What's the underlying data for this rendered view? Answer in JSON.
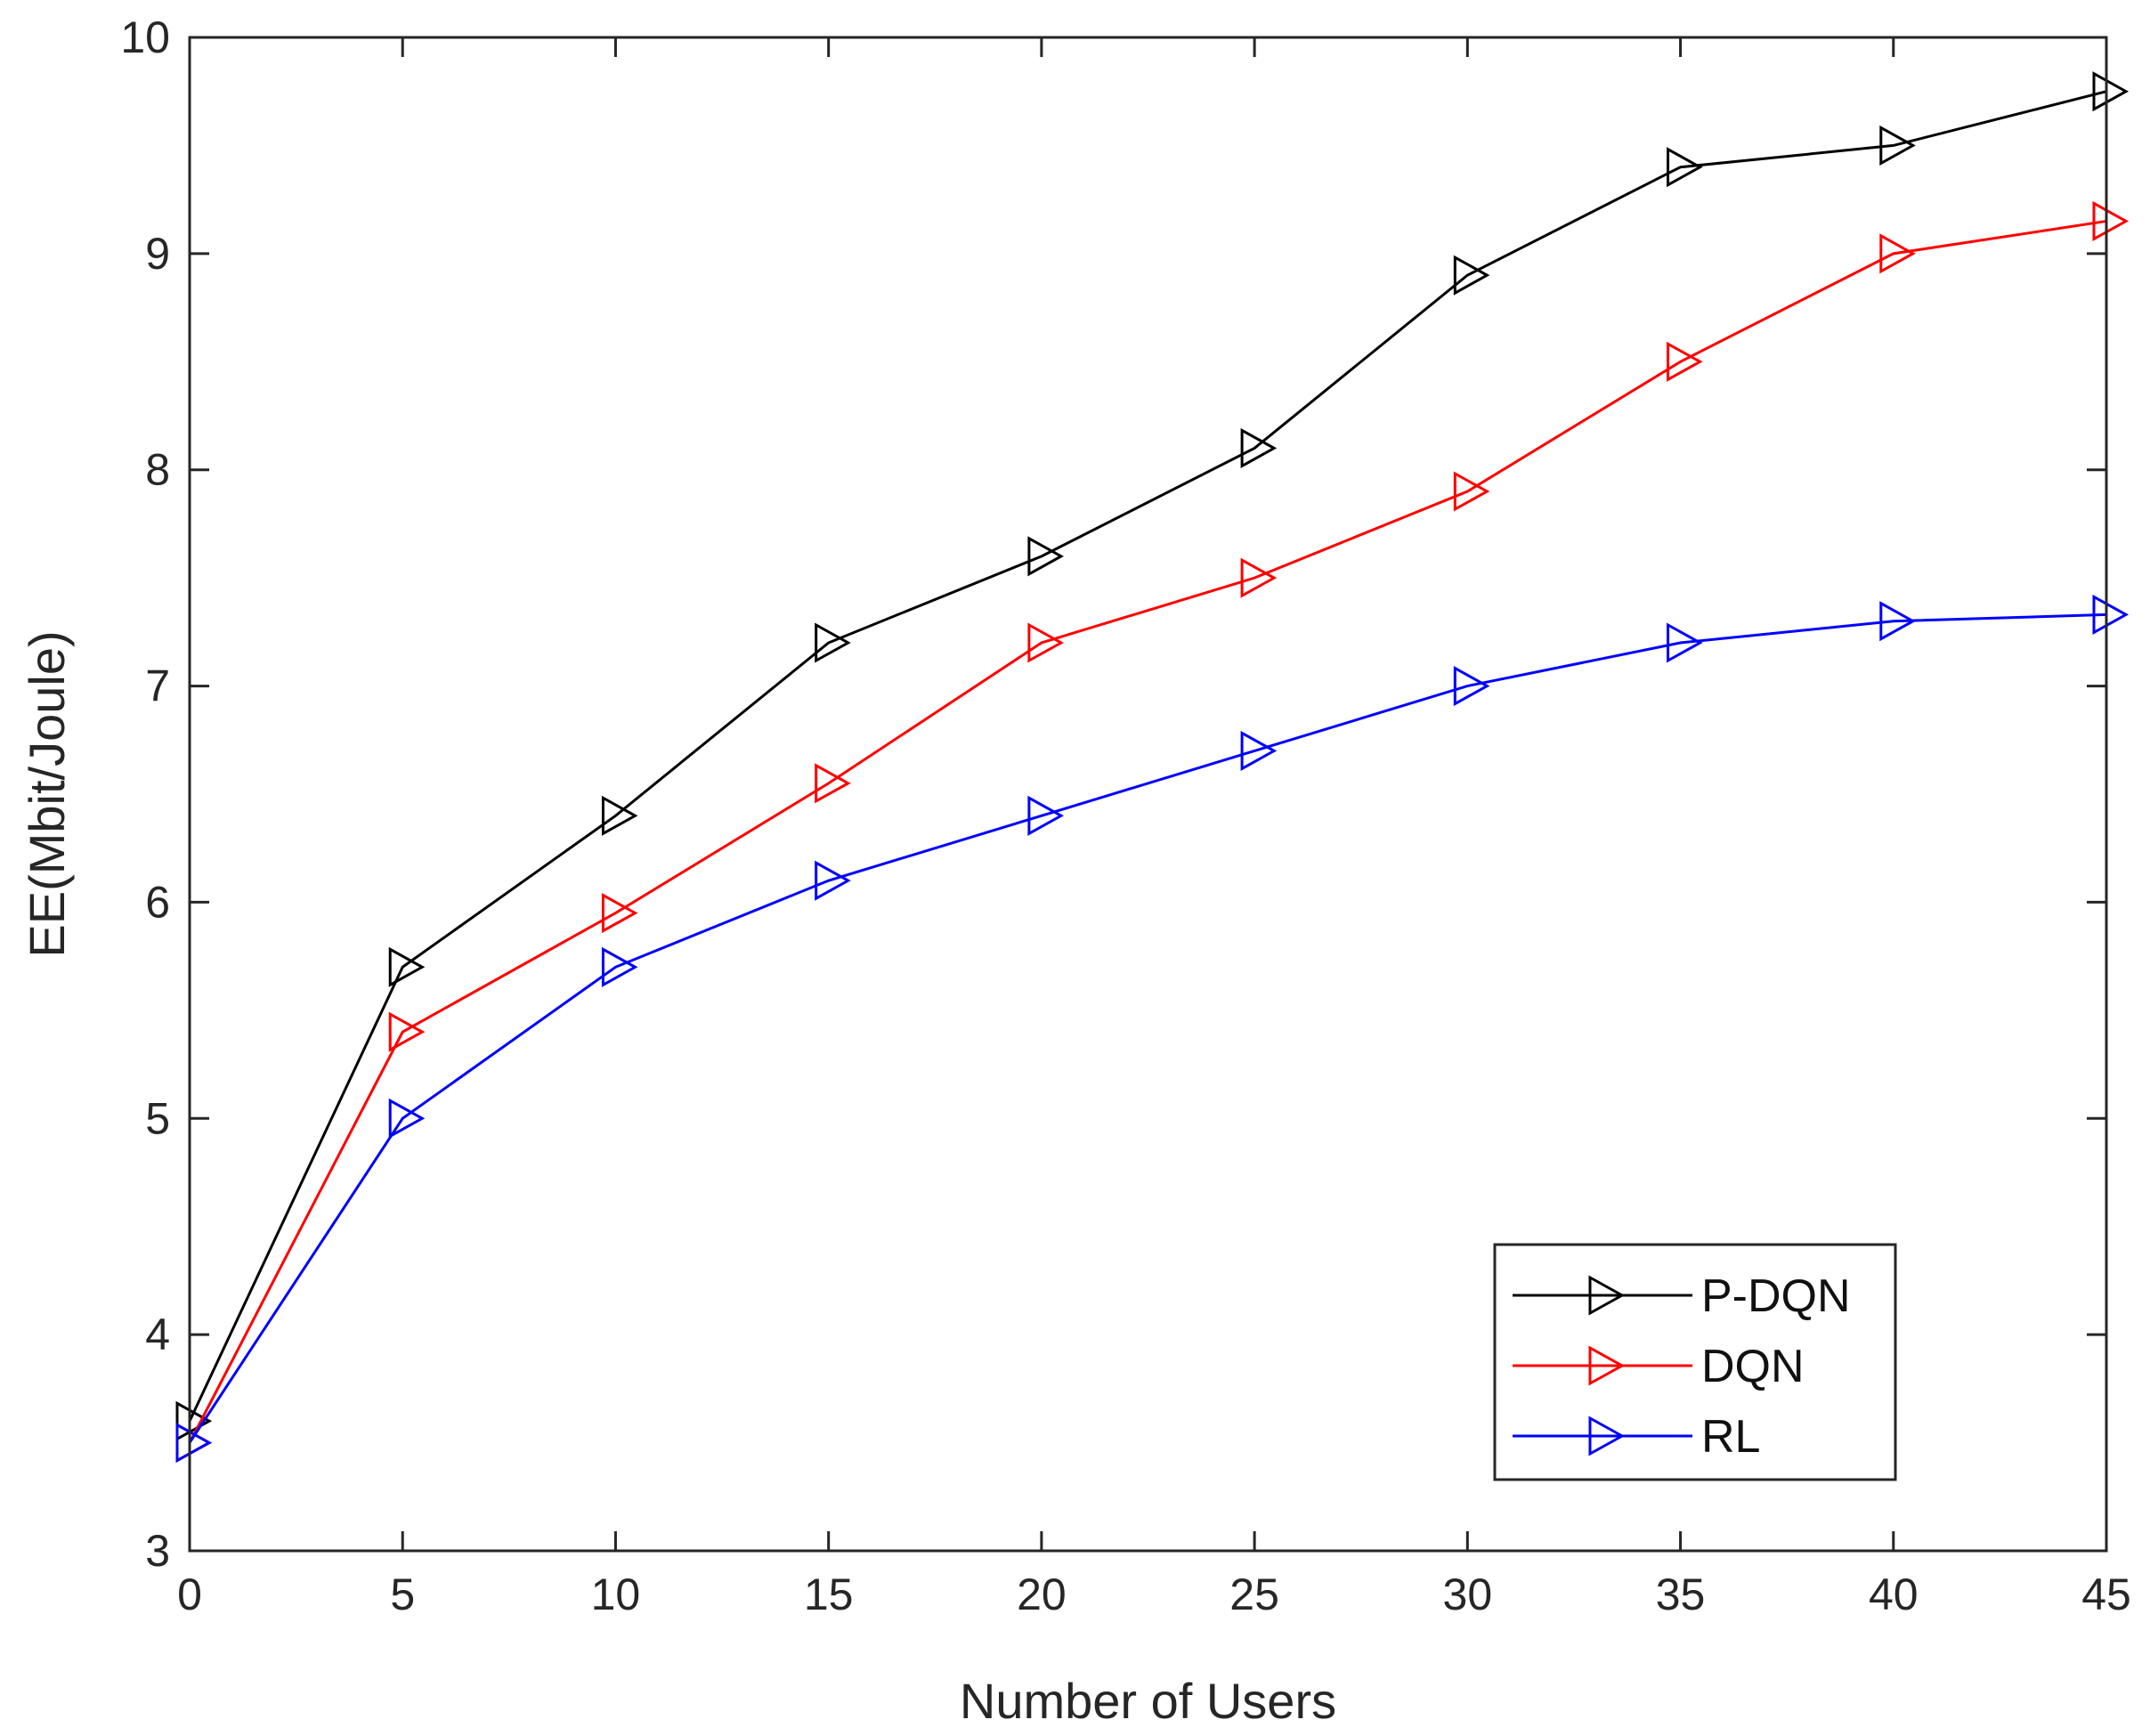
{
  "chart_data": {
    "type": "line",
    "title": "",
    "xlabel": "Number of Users",
    "ylabel": "EE(Mbit/Joule)",
    "x": [
      0,
      5,
      10,
      15,
      20,
      25,
      30,
      35,
      40,
      45
    ],
    "xlim": [
      0,
      45
    ],
    "ylim": [
      3,
      10
    ],
    "xticks": [
      0,
      5,
      10,
      15,
      20,
      25,
      30,
      35,
      40,
      45
    ],
    "yticks": [
      3,
      4,
      5,
      6,
      7,
      8,
      9,
      10
    ],
    "grid": false,
    "legend_position": "bottom-right",
    "marker": "triangle-right",
    "series": [
      {
        "name": "P-DQN",
        "color": "#000000",
        "values": [
          3.6,
          5.7,
          6.4,
          7.2,
          7.6,
          8.1,
          8.9,
          9.4,
          9.5,
          9.75
        ]
      },
      {
        "name": "DQN",
        "color": "#ff0000",
        "values": [
          3.5,
          5.4,
          5.95,
          6.55,
          7.2,
          7.5,
          7.9,
          8.5,
          9.0,
          9.15
        ]
      },
      {
        "name": "RL",
        "color": "#0000ff",
        "values": [
          3.5,
          5.0,
          5.7,
          6.1,
          6.4,
          6.7,
          7.0,
          7.2,
          7.3,
          7.33
        ]
      }
    ]
  }
}
